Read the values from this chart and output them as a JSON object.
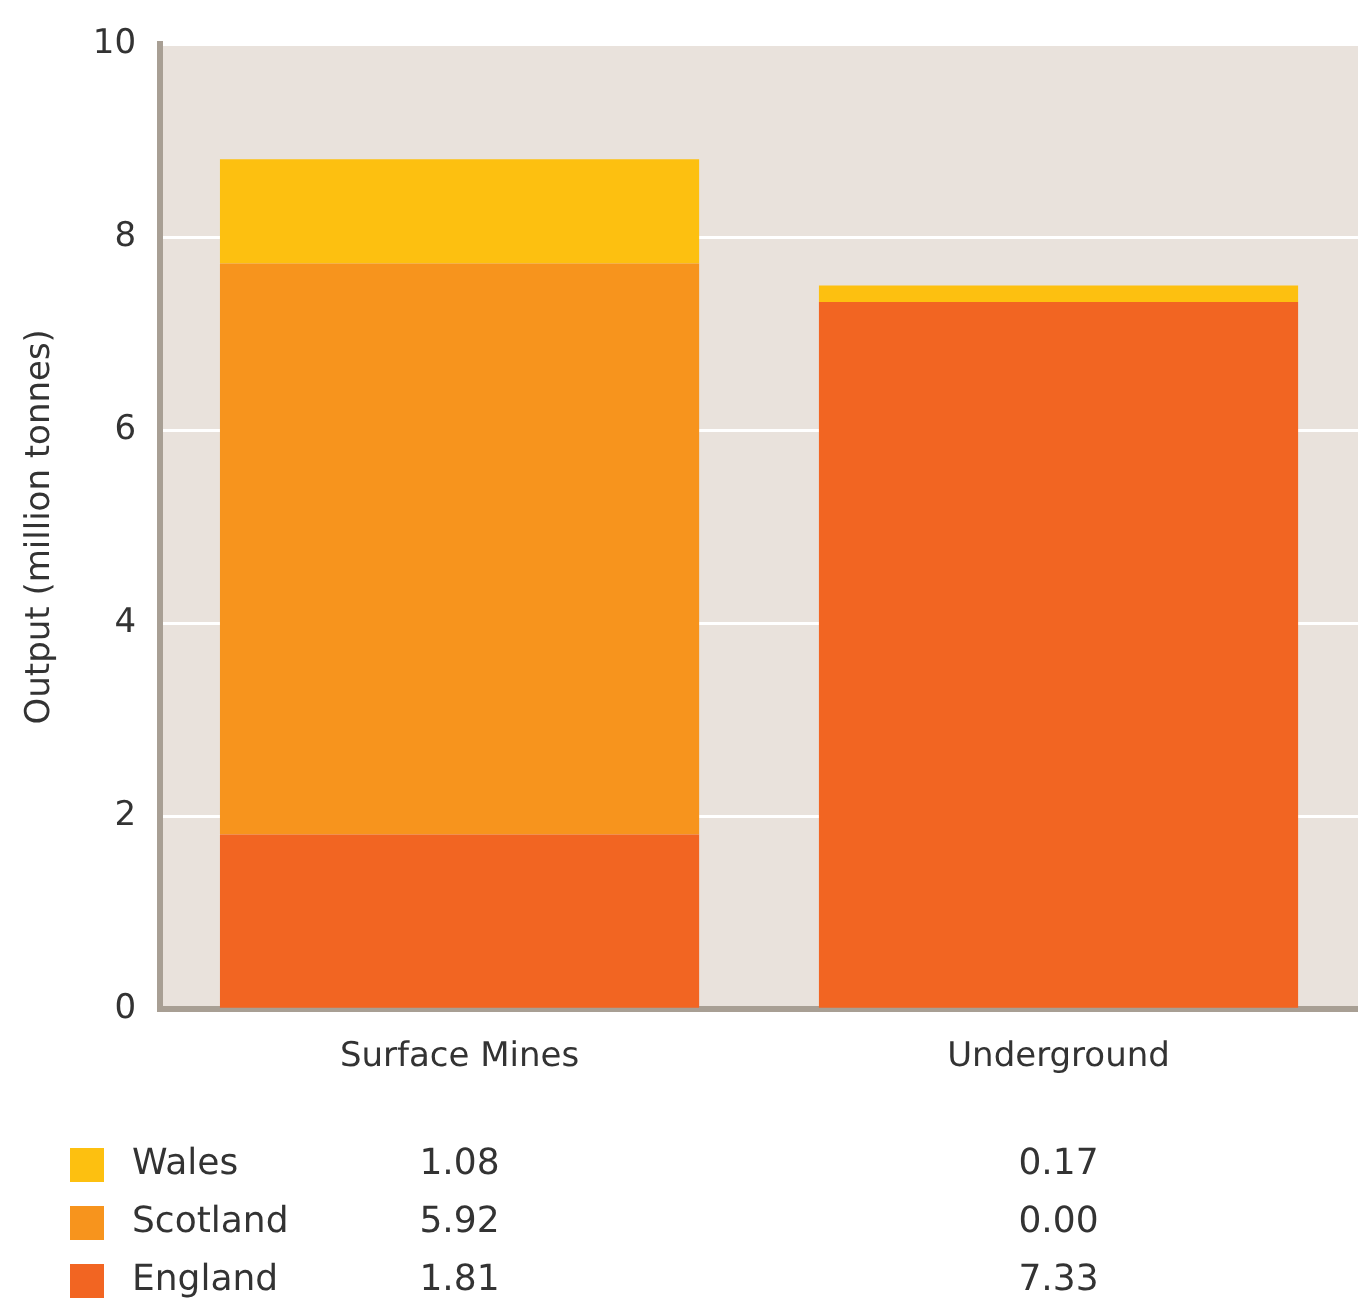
{
  "chart_data": {
    "type": "bar",
    "stacked": true,
    "ylabel": "Output (million tonnes)",
    "categories": [
      "Surface Mines",
      "Underground"
    ],
    "series": [
      {
        "name": "England",
        "color": "#f26522",
        "values": [
          1.81,
          7.33
        ],
        "value_labels": [
          "1.81",
          "7.33"
        ]
      },
      {
        "name": "Scotland",
        "color": "#f7941d",
        "values": [
          5.92,
          0.0
        ],
        "value_labels": [
          "5.92",
          "0.00"
        ]
      },
      {
        "name": "Wales",
        "color": "#fdc010",
        "values": [
          1.08,
          0.17
        ],
        "value_labels": [
          "1.08",
          "0.17"
        ]
      }
    ],
    "ylim": [
      0,
      10
    ],
    "yticks": [
      0,
      2,
      4,
      6,
      8,
      10
    ],
    "grid": "y",
    "legend": "bottom"
  }
}
